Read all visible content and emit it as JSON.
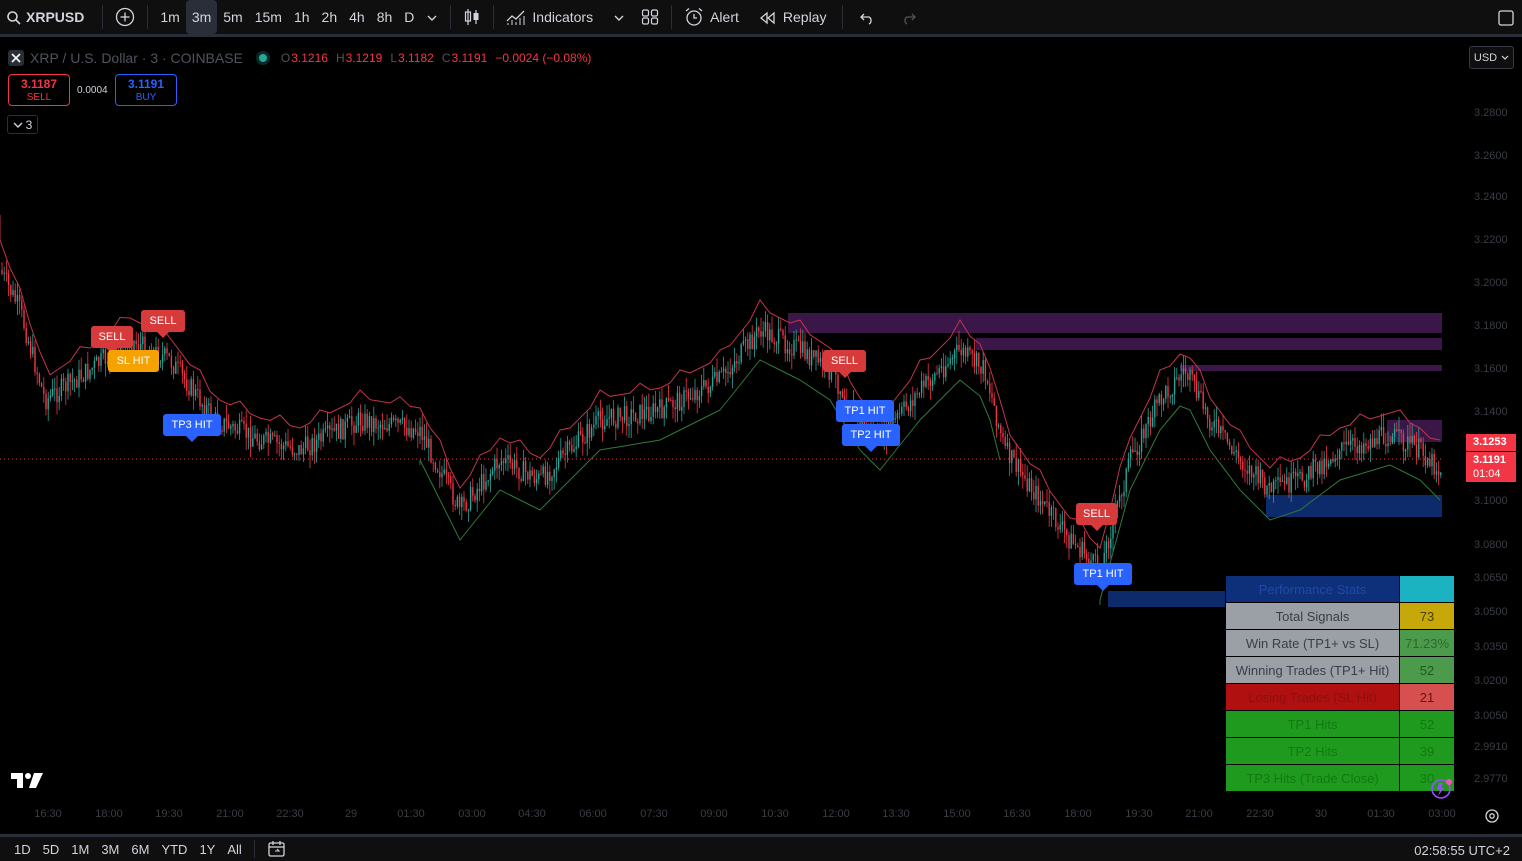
{
  "toolbar": {
    "symbol": "XRPUSD",
    "intervals": [
      "1m",
      "3m",
      "5m",
      "15m",
      "1h",
      "2h",
      "4h",
      "8h",
      "D"
    ],
    "active_interval": "3m",
    "indicators_label": "Indicators",
    "alert_label": "Alert",
    "replay_label": "Replay"
  },
  "legend": {
    "title": "XRP / U.S. Dollar · 3 · COINBASE",
    "open_label": "O",
    "open": "3.1216",
    "high_label": "H",
    "high": "3.1219",
    "low_label": "L",
    "low": "3.1182",
    "close_label": "C",
    "close": "3.1191",
    "change": "−0.0024 (−0.08%)"
  },
  "trade": {
    "sell_price": "3.1187",
    "sell_label": "SELL",
    "spread": "0.0004",
    "buy_price": "3.1191",
    "buy_label": "BUY",
    "collapse_count": "3"
  },
  "price_axis": {
    "currency": "USD",
    "ticks": [
      "3.2800",
      "3.2600",
      "3.2400",
      "3.2200",
      "3.2000",
      "3.1800",
      "3.1600",
      "3.1400",
      "3.1000",
      "3.0800",
      "3.0650",
      "3.0500",
      "3.0350",
      "3.0200",
      "3.0050",
      "2.9910",
      "2.9770"
    ],
    "marker_price": "3.1253",
    "last_price": "3.1191",
    "countdown": "01:04"
  },
  "time_axis": [
    "16:30",
    "18:00",
    "19:30",
    "21:00",
    "22:30",
    "29",
    "01:30",
    "03:00",
    "04:30",
    "06:00",
    "07:30",
    "09:00",
    "10:30",
    "12:00",
    "13:30",
    "15:00",
    "16:30",
    "18:00",
    "19:30",
    "21:00",
    "22:30",
    "30",
    "01:30",
    "03:00"
  ],
  "signals": {
    "sell_1": "SELL",
    "sell_2": "SELL",
    "sl_hit": "SL HIT",
    "tp3_hit": "TP3 HIT",
    "sell_3": "SELL",
    "tp1_hit_1": "TP1 HIT",
    "tp2_hit": "TP2 HIT",
    "sell_4": "SELL",
    "tp1_hit_2": "TP1 HIT"
  },
  "performance": {
    "header": "Performance Stats",
    "rows": [
      {
        "label": "Total Signals",
        "value": "73"
      },
      {
        "label": "Win Rate (TP1+ vs SL)",
        "value": "71.23%"
      },
      {
        "label": "Winning Trades (TP1+ Hit)",
        "value": "52"
      },
      {
        "label": "Losing Trades (SL Hit)",
        "value": "21"
      },
      {
        "label": "TP1 Hits",
        "value": "52"
      },
      {
        "label": "TP2 Hits",
        "value": "39"
      },
      {
        "label": "TP3 Hits (Trade Close)",
        "value": "30"
      }
    ]
  },
  "bottom": {
    "ranges": [
      "1D",
      "5D",
      "1M",
      "3M",
      "6M",
      "YTD",
      "1Y",
      "All"
    ],
    "clock": "02:58:55 UTC+2"
  },
  "colors": {
    "up": "#26a69a",
    "down": "#f23645",
    "sell": "#d63a3a",
    "tp": "#2962ff",
    "sl": "#f5a200",
    "zone_purple": "#3a1748",
    "zone_blue": "#0d2a6a",
    "stop_red": "#c2344b",
    "stop_green": "#2f7a3a"
  }
}
